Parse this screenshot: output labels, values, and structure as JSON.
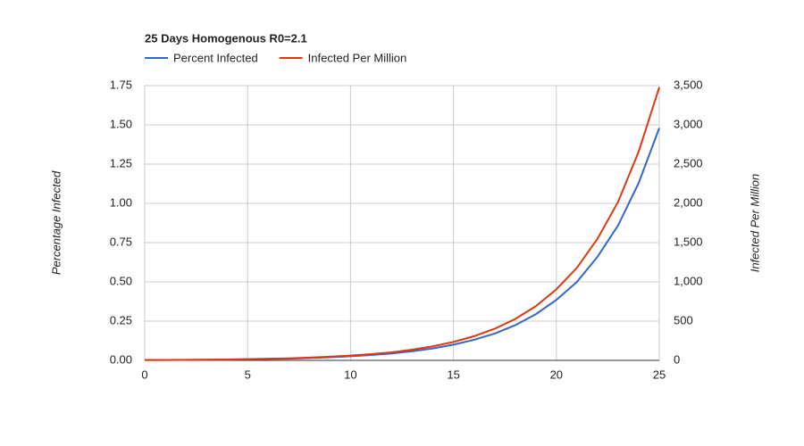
{
  "chart_data": {
    "type": "line",
    "title": "25 Days Homogenous R0=2.1",
    "y_label": "Percentage Infected",
    "y2_label": "Infected Per Million",
    "x": [
      0,
      1,
      2,
      3,
      4,
      5,
      6,
      7,
      8,
      9,
      10,
      11,
      12,
      13,
      14,
      15,
      16,
      17,
      18,
      19,
      20,
      21,
      22,
      23,
      24,
      25
    ],
    "series": [
      {
        "name": "Percent Infected",
        "color": "#3366cc",
        "values": [
          0.002,
          0.002,
          0.003,
          0.004,
          0.005,
          0.007,
          0.009,
          0.011,
          0.015,
          0.02,
          0.026,
          0.034,
          0.044,
          0.058,
          0.076,
          0.1,
          0.131,
          0.171,
          0.224,
          0.294,
          0.385,
          0.5,
          0.66,
          0.86,
          1.13,
          1.48
        ]
      },
      {
        "name": "Infected Per Million",
        "color": "#dc3912",
        "axis": "y2",
        "values": [
          4,
          5,
          7,
          9,
          12,
          16,
          21,
          26,
          35,
          47,
          61,
          80,
          103,
          136,
          179,
          235,
          308,
          402,
          527,
          690,
          905,
          1180,
          1550,
          2020,
          2660,
          3480
        ]
      }
    ],
    "xlim": [
      0,
      25
    ],
    "xticks": [
      0,
      5,
      10,
      15,
      20,
      25
    ],
    "ylim": [
      0,
      1.75
    ],
    "yticks": [
      {
        "value": 0,
        "label": "0.00"
      },
      {
        "value": 0.25,
        "label": "0.25"
      },
      {
        "value": 0.5,
        "label": "0.50"
      },
      {
        "value": 0.75,
        "label": "0.75"
      },
      {
        "value": 1,
        "label": "1.00"
      },
      {
        "value": 1.25,
        "label": "1.25"
      },
      {
        "value": 1.5,
        "label": "1.50"
      },
      {
        "value": 1.75,
        "label": "1.75"
      }
    ],
    "y2lim": [
      0,
      3500
    ],
    "y2ticks": [
      0,
      500,
      {
        "value": 1000,
        "label": "1,000"
      },
      {
        "value": 1500,
        "label": "1,500"
      },
      {
        "value": 2000,
        "label": "2,000"
      },
      {
        "value": 2500,
        "label": "2,500"
      },
      {
        "value": 3000,
        "label": "3,000"
      },
      {
        "value": 3500,
        "label": "3,500"
      }
    ],
    "grid": true
  }
}
